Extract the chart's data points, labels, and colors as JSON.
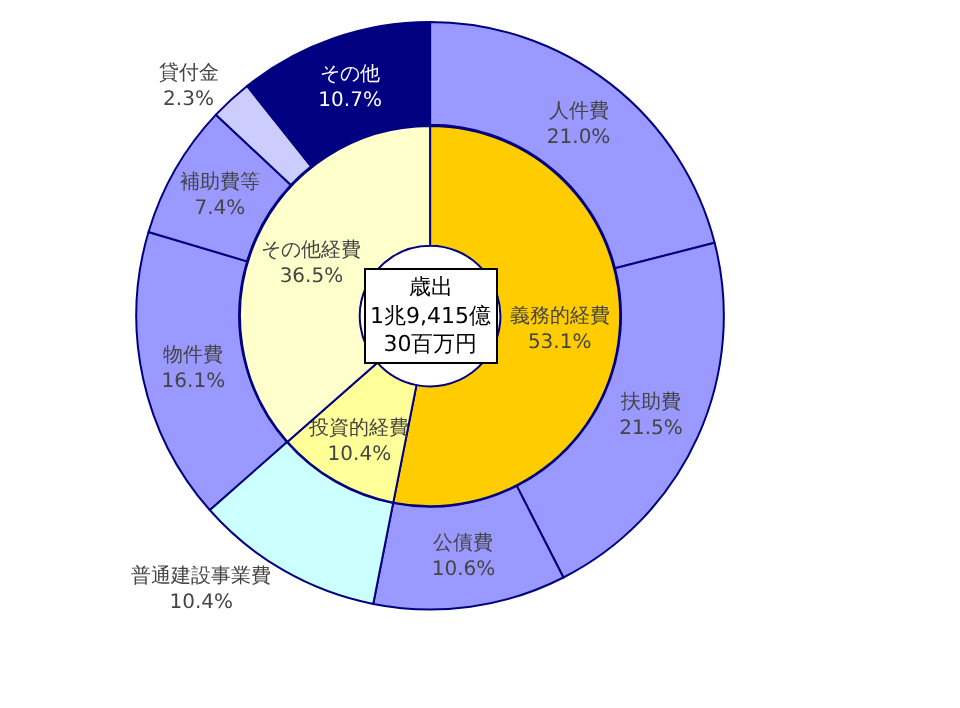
{
  "chart_data": [
    {
      "type": "donut",
      "categories": [
        "人件費",
        "扶助費",
        "公債費",
        "普通建設事業費",
        "物件費",
        "補助費等",
        "貸付金",
        "その他"
      ],
      "values": [
        21.0,
        21.5,
        10.6,
        10.4,
        16.1,
        7.4,
        2.3,
        10.7
      ],
      "value_labels": [
        "21.0%",
        "21.5%",
        "10.6%",
        "10.4%",
        "16.1%",
        "7.4%",
        "2.3%",
        "10.7%"
      ],
      "colors": [
        "#9999ff",
        "#9999ff",
        "#9999ff",
        "#ccffff",
        "#9999ff",
        "#9999ff",
        "#ccccff",
        "#000080"
      ]
    },
    {
      "type": "donut",
      "categories": [
        "義務的経費",
        "投資的経費",
        "その他経費"
      ],
      "values": [
        53.1,
        10.4,
        36.5
      ],
      "value_labels": [
        "53.1%",
        "10.4%",
        "36.5%"
      ],
      "colors": [
        "#ffcc00",
        "#ffff99",
        "#ffffcc"
      ],
      "annotations": [
        "歳出\n1兆9,415億\n30百万円"
      ]
    }
  ]
}
